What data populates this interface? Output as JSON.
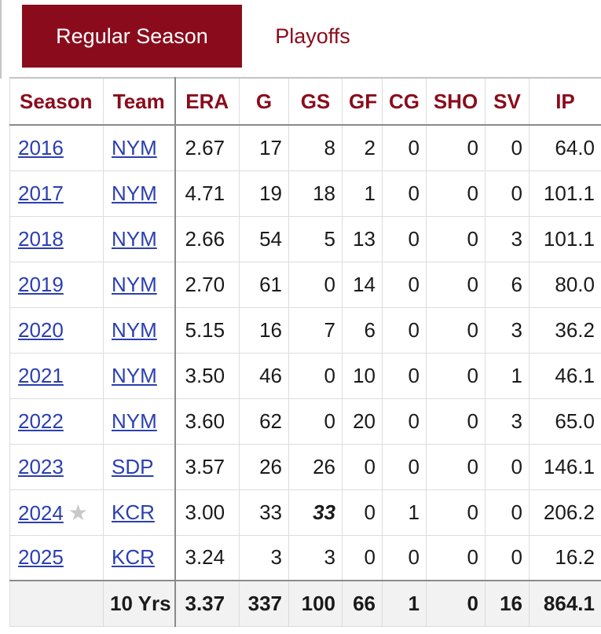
{
  "tabs": {
    "regular_season": "Regular Season",
    "playoffs": "Playoffs"
  },
  "headers": {
    "season": "Season",
    "team": "Team",
    "era": "ERA",
    "g": "G",
    "gs": "GS",
    "gf": "GF",
    "cg": "CG",
    "sho": "SHO",
    "sv": "SV",
    "ip": "IP"
  },
  "rows": [
    {
      "season": "2016",
      "team": "NYM",
      "era": "2.67",
      "g": "17",
      "gs": "8",
      "gf": "2",
      "cg": "0",
      "sho": "0",
      "sv": "0",
      "ip": "64.0"
    },
    {
      "season": "2017",
      "team": "NYM",
      "era": "4.71",
      "g": "19",
      "gs": "18",
      "gf": "1",
      "cg": "0",
      "sho": "0",
      "sv": "0",
      "ip": "101.1"
    },
    {
      "season": "2018",
      "team": "NYM",
      "era": "2.66",
      "g": "54",
      "gs": "5",
      "gf": "13",
      "cg": "0",
      "sho": "0",
      "sv": "3",
      "ip": "101.1"
    },
    {
      "season": "2019",
      "team": "NYM",
      "era": "2.70",
      "g": "61",
      "gs": "0",
      "gf": "14",
      "cg": "0",
      "sho": "0",
      "sv": "6",
      "ip": "80.0"
    },
    {
      "season": "2020",
      "team": "NYM",
      "era": "5.15",
      "g": "16",
      "gs": "7",
      "gf": "6",
      "cg": "0",
      "sho": "0",
      "sv": "3",
      "ip": "36.2"
    },
    {
      "season": "2021",
      "team": "NYM",
      "era": "3.50",
      "g": "46",
      "gs": "0",
      "gf": "10",
      "cg": "0",
      "sho": "0",
      "sv": "1",
      "ip": "46.1"
    },
    {
      "season": "2022",
      "team": "NYM",
      "era": "3.60",
      "g": "62",
      "gs": "0",
      "gf": "20",
      "cg": "0",
      "sho": "0",
      "sv": "3",
      "ip": "65.0"
    },
    {
      "season": "2023",
      "team": "SDP",
      "era": "3.57",
      "g": "26",
      "gs": "26",
      "gf": "0",
      "cg": "0",
      "sho": "0",
      "sv": "0",
      "ip": "146.1"
    },
    {
      "season": "2024",
      "team": "KCR",
      "era": "3.00",
      "g": "33",
      "gs": "33",
      "gf": "0",
      "cg": "1",
      "sho": "0",
      "sv": "0",
      "ip": "206.2",
      "all_star_icon": "star-icon",
      "star_glyph": "★",
      "gs_league_leader": true
    },
    {
      "season": "2025",
      "team": "KCR",
      "era": "3.24",
      "g": "3",
      "gs": "3",
      "gf": "0",
      "cg": "0",
      "sho": "0",
      "sv": "0",
      "ip": "16.2"
    }
  ],
  "totals": {
    "label": "10 Yrs",
    "era": "3.37",
    "g": "337",
    "gs": "100",
    "gf": "66",
    "cg": "1",
    "sho": "0",
    "sv": "16",
    "ip": "864.1"
  },
  "colors": {
    "accent": "#8a0c1c",
    "link": "#2b3fb0",
    "star": "#c8c8c8"
  }
}
